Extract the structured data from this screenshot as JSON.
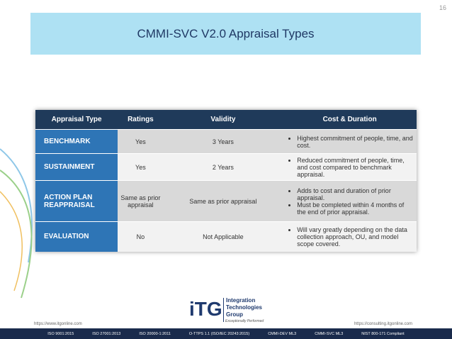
{
  "page_number": "16",
  "title": "CMMI-SVC V2.0 Appraisal Types",
  "table": {
    "headers": [
      "Appraisal Type",
      "Ratings",
      "Validity",
      "Cost & Duration"
    ],
    "rows": [
      [
        "BENCHMARK",
        "Yes",
        "3 Years",
        [
          "Highest commitment of people, time, and cost."
        ]
      ],
      [
        "SUSTAINMENT",
        "Yes",
        "2 Years",
        [
          "Reduced commitment of people, time, and cost compared to benchmark appraisal."
        ]
      ],
      [
        "ACTION PLAN REAPPRAISAL",
        "Same as prior appraisal",
        "Same as prior appraisal",
        [
          "Adds to cost and duration of prior appraisal.",
          "Must be completed within 4 months of the end of prior appraisal."
        ]
      ],
      [
        "EVALUATION",
        "No",
        "Not Applicable",
        [
          "Will vary greatly depending on the data collection approach, OU, and model scope covered."
        ]
      ]
    ]
  },
  "footer": {
    "logo": "iTG",
    "company": [
      "Integration",
      "Technologies",
      "Group"
    ],
    "tagline": "Exceptionally Performed",
    "url_left": "https://www.itgonline.com",
    "url_right": "https://consulting.itgonline.com",
    "certifications": [
      "ISO 9001:2015",
      "ISO 27001:2013",
      "ISO 20000-1:2011",
      "O-TTPS 1.1 (ISO/IEC 20243:2015)",
      "CMMI-DEV ML3",
      "CMMI-SVC ML3",
      "NIST 800-171 Compliant"
    ]
  }
}
